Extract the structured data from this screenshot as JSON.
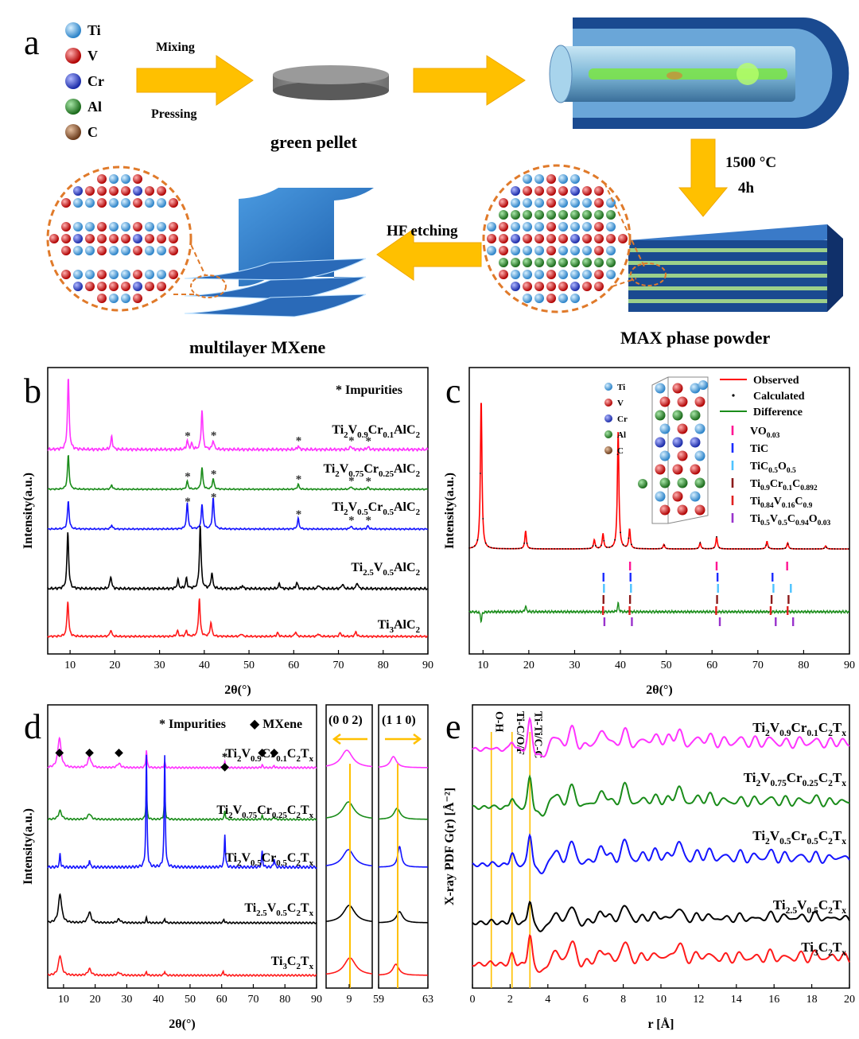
{
  "panel_labels": {
    "a": "a",
    "b": "b",
    "c": "c",
    "d": "d",
    "e": "e"
  },
  "colors": {
    "magenta": "#ff33ff",
    "green": "#1a8c1a",
    "blue": "#1414ff",
    "black": "#000000",
    "red": "#ff1a1a",
    "arrow": "#ffc000",
    "ti": "#5aa9e6",
    "v": "#d81b1b",
    "cr": "#2a3fd6",
    "al": "#2e8b2e",
    "c": "#8b5a3c"
  },
  "schematic": {
    "elements": [
      {
        "symbol": "Ti",
        "color_key": "ti",
        "icon": "ti-sphere-icon"
      },
      {
        "symbol": "V",
        "color_key": "v",
        "icon": "v-sphere-icon"
      },
      {
        "symbol": "Cr",
        "color_key": "cr",
        "icon": "cr-sphere-icon"
      },
      {
        "symbol": "Al",
        "color_key": "al",
        "icon": "al-sphere-icon"
      },
      {
        "symbol": "C",
        "color_key": "c",
        "icon": "c-sphere-icon"
      }
    ],
    "mixing": "Mixing",
    "pressing": "Pressing",
    "green_pellet": "green pellet",
    "temperature": "1500 °C",
    "duration": "4h",
    "hf_etching": "HF etching",
    "max_powder": "MAX phase powder",
    "mxene": "multilayer MXene"
  },
  "chart_data": [
    {
      "panel": "b",
      "type": "line",
      "xlabel": "2θ(°)",
      "ylabel": "Intensity(a.u.)",
      "xlim": [
        5,
        90
      ],
      "xticks": [
        10,
        20,
        30,
        40,
        50,
        60,
        70,
        80,
        90
      ],
      "annotation": "* Impurities",
      "series": [
        {
          "name": "Ti2V0.9Cr0.1AlC2",
          "color": "#ff33ff",
          "peaks": [
            [
              9.6,
              100
            ],
            [
              19.3,
              18
            ],
            [
              36.2,
              12
            ],
            [
              37.2,
              8
            ],
            [
              39.5,
              55
            ],
            [
              42.0,
              13
            ],
            [
              61.0,
              5
            ],
            [
              72.8,
              5
            ],
            [
              76.6,
              4
            ]
          ],
          "impurity_marks": [
            36.3,
            42.1,
            61.1,
            72.9,
            76.7
          ]
        },
        {
          "name": "Ti2V0.75Cr0.25AlC2",
          "color": "#1a8c1a",
          "peaks": [
            [
              9.6,
              95
            ],
            [
              19.3,
              12
            ],
            [
              36.2,
              22
            ],
            [
              39.5,
              60
            ],
            [
              42.0,
              30
            ],
            [
              61.0,
              14
            ],
            [
              72.8,
              8
            ],
            [
              76.6,
              6
            ]
          ],
          "impurity_marks": [
            36.3,
            42.1,
            61.1,
            72.9,
            76.7
          ]
        },
        {
          "name": "Ti2V0.5Cr0.5AlC2",
          "color": "#1414ff",
          "peaks": [
            [
              9.6,
              70
            ],
            [
              19.3,
              10
            ],
            [
              36.2,
              65
            ],
            [
              39.5,
              60
            ],
            [
              42.0,
              78
            ],
            [
              61.0,
              26
            ],
            [
              72.8,
              8
            ],
            [
              76.6,
              8
            ]
          ],
          "impurity_marks": [
            36.3,
            42.1,
            61.1,
            72.9,
            76.7
          ]
        },
        {
          "name": "Ti2.5V0.5AlC2",
          "color": "#000000",
          "peaks": [
            [
              9.5,
              90
            ],
            [
              19.1,
              20
            ],
            [
              34.1,
              14
            ],
            [
              36.0,
              16
            ],
            [
              39.1,
              100
            ],
            [
              41.7,
              25
            ],
            [
              48.5,
              5
            ],
            [
              56.8,
              8
            ],
            [
              60.7,
              10
            ],
            [
              65.6,
              6
            ],
            [
              70.9,
              8
            ],
            [
              74.2,
              10
            ]
          ],
          "impurity_marks": []
        },
        {
          "name": "Ti3AlC2",
          "color": "#ff1a1a",
          "peaks": [
            [
              9.5,
              75
            ],
            [
              19.1,
              14
            ],
            [
              34.0,
              12
            ],
            [
              36.0,
              12
            ],
            [
              38.9,
              80
            ],
            [
              41.5,
              30
            ],
            [
              48.3,
              6
            ],
            [
              56.4,
              8
            ],
            [
              60.4,
              10
            ],
            [
              65.5,
              6
            ],
            [
              70.4,
              8
            ],
            [
              73.9,
              10
            ]
          ],
          "impurity_marks": []
        }
      ]
    },
    {
      "panel": "c",
      "type": "line",
      "xlabel": "2θ(°)",
      "ylabel": "Intensity(a.u.)",
      "xlim": [
        7,
        90
      ],
      "xticks": [
        10,
        20,
        30,
        40,
        50,
        60,
        70,
        80,
        90
      ],
      "legend": [
        "Observed",
        "Calculated",
        "Difference"
      ],
      "legend_colors": [
        "#ff0000",
        "#000000",
        "#1a8c1a"
      ],
      "observed_peaks": [
        [
          9.6,
          100
        ],
        [
          19.3,
          12
        ],
        [
          34.3,
          6
        ],
        [
          36.2,
          10
        ],
        [
          39.5,
          78
        ],
        [
          42.0,
          13
        ],
        [
          49.5,
          3
        ],
        [
          57.4,
          4
        ],
        [
          61.0,
          8
        ],
        [
          72.0,
          5
        ],
        [
          76.5,
          4
        ],
        [
          84.8,
          2
        ]
      ],
      "phases": [
        {
          "name": "VO0.03",
          "color": "#ff1493",
          "ticks": [
            42.1,
            61.0,
            76.4
          ]
        },
        {
          "name": "TiC",
          "color": "#1a2bff",
          "ticks": [
            36.3,
            42.2,
            61.2,
            73.2
          ]
        },
        {
          "name": "TiC0.5O0.5",
          "color": "#4dc3ff",
          "ticks": [
            36.4,
            42.3,
            61.3,
            73.4,
            77.2
          ]
        },
        {
          "name": "Ti0.9Cr0.1C0.892",
          "color": "#8b1a1a",
          "ticks": [
            36.3,
            42.1,
            61.1,
            73.0,
            76.7
          ]
        },
        {
          "name": "Ti0.84V0.16C0.9",
          "color": "#e02020",
          "ticks": [
            36.2,
            42.0,
            60.9,
            72.8,
            76.5
          ]
        },
        {
          "name": "Ti0.5V0.5C0.94O0.03",
          "color": "#9932cc",
          "ticks": [
            36.5,
            42.5,
            61.7,
            73.9,
            77.7
          ]
        }
      ],
      "difference_spikes": [
        [
          9.6,
          -8
        ],
        [
          19.3,
          5
        ],
        [
          39.5,
          7
        ]
      ],
      "inset_elements": [
        "Ti",
        "V",
        "Cr",
        "Al",
        "C"
      ]
    },
    {
      "panel": "d",
      "type": "line",
      "xlabel": "2θ(°)",
      "ylabel": "Intensity(a.u.)",
      "xlim": [
        5,
        90
      ],
      "xticks": [
        10,
        20,
        30,
        40,
        50,
        60,
        70,
        80,
        90
      ],
      "annotation_impurities": "* Impurities",
      "annotation_mxene": "◆ MXene",
      "zoom_002": {
        "label": "(0 0 2)",
        "xlim": [
          7.5,
          10.5
        ],
        "xticks": [
          9
        ]
      },
      "zoom_110": {
        "label": "(1 1 0)",
        "xlim": [
          59,
          63
        ],
        "xticks": [
          59,
          63
        ]
      },
      "series": [
        {
          "name": "Ti2V0.9Cr0.1C2Tx",
          "color": "#ff33ff",
          "peaks": [
            [
              8.7,
              42
            ],
            [
              18.2,
              15
            ],
            [
              27.5,
              6
            ],
            [
              36.2,
              25
            ],
            [
              42.0,
              8
            ],
            [
              61.0,
              8
            ],
            [
              72.8,
              4
            ],
            [
              76.6,
              3
            ]
          ],
          "peak_002": 8.85,
          "peak_110": 60.2
        },
        {
          "name": "Ti2V0.75Cr0.25C2Tx",
          "color": "#1a8c1a",
          "peaks": [
            [
              8.9,
              12
            ],
            [
              18.2,
              8
            ],
            [
              36.2,
              40
            ],
            [
              42.0,
              38
            ],
            [
              61.0,
              12
            ],
            [
              72.8,
              5
            ],
            [
              76.6,
              4
            ]
          ],
          "peak_002": 8.95,
          "peak_110": 60.5
        },
        {
          "name": "Ti2V0.5Cr0.5C2Tx",
          "color": "#1414ff",
          "peaks": [
            [
              8.9,
              12
            ],
            [
              18.2,
              7
            ],
            [
              36.2,
              100
            ],
            [
              42.0,
              100
            ],
            [
              61.0,
              30
            ],
            [
              72.8,
              14
            ],
            [
              76.6,
              8
            ]
          ],
          "peak_002": 8.95,
          "peak_110": 60.7
        },
        {
          "name": "Ti2.5V0.5C2Tx",
          "color": "#000000",
          "peaks": [
            [
              8.9,
              40
            ],
            [
              18.2,
              15
            ],
            [
              27.5,
              5
            ],
            [
              36.2,
              7
            ],
            [
              42.0,
              6
            ],
            [
              60.7,
              5
            ]
          ],
          "peak_002": 9.0,
          "peak_110": 60.7
        },
        {
          "name": "Ti3C2Tx",
          "color": "#ff1a1a",
          "peaks": [
            [
              8.9,
              28
            ],
            [
              18.2,
              9
            ],
            [
              27.5,
              4
            ],
            [
              36.2,
              5
            ],
            [
              42.0,
              6
            ],
            [
              60.5,
              6
            ]
          ],
          "peak_002": 9.05,
          "peak_110": 60.4
        }
      ]
    },
    {
      "panel": "e",
      "type": "line",
      "xlabel": "r [Å]",
      "ylabel": "X-ray PDF G(r) [Å⁻²]",
      "xlim": [
        0,
        20
      ],
      "xticks": [
        0,
        2,
        4,
        6,
        8,
        10,
        12,
        14,
        16,
        18,
        20
      ],
      "reference_lines": [
        {
          "label": "O-H",
          "r": 1.0
        },
        {
          "label": "Ti-C/O/F",
          "r": 2.1
        },
        {
          "label": "Ti-Ti/C-C",
          "r": 3.05
        }
      ],
      "peak_positions": [
        1.0,
        2.1,
        3.05,
        4.2,
        4.5,
        5.3,
        6.0,
        6.8,
        7.3,
        8.1,
        9.0,
        9.7,
        10.4,
        11.0,
        11.9,
        12.6,
        13.4,
        14.2,
        15.0,
        15.8,
        16.6,
        17.4,
        18.2,
        19.0,
        19.7
      ],
      "series": [
        {
          "name": "Ti2V0.9Cr0.1C2Tx",
          "color": "#ff33ff",
          "amplitudes": [
            0.06,
            0.25,
            0.9,
            0.25,
            0.3,
            0.7,
            0.35,
            0.55,
            0.3,
            0.6,
            0.35,
            0.45,
            0.4,
            0.55,
            0.4,
            0.45,
            0.35,
            0.4,
            0.35,
            0.4,
            0.3,
            0.35,
            0.35,
            0.3,
            0.3
          ]
        },
        {
          "name": "Ti2V0.75Cr0.25C2Tx",
          "color": "#1a8c1a",
          "amplitudes": [
            0.05,
            0.3,
            0.95,
            0.25,
            0.3,
            0.7,
            0.3,
            0.45,
            0.25,
            0.7,
            0.3,
            0.35,
            0.3,
            0.6,
            0.35,
            0.4,
            0.3,
            0.3,
            0.3,
            0.35,
            0.3,
            0.3,
            0.35,
            0.25,
            0.25
          ]
        },
        {
          "name": "Ti2V0.5Cr0.5C2Tx",
          "color": "#1414ff",
          "amplitudes": [
            0.05,
            0.35,
            0.95,
            0.25,
            0.3,
            0.75,
            0.3,
            0.5,
            0.3,
            0.75,
            0.35,
            0.45,
            0.35,
            0.7,
            0.4,
            0.45,
            0.35,
            0.4,
            0.35,
            0.45,
            0.35,
            0.35,
            0.35,
            0.3,
            0.3
          ]
        },
        {
          "name": "Ti2.5V0.5C2Tx",
          "color": "#000000",
          "amplitudes": [
            0.05,
            0.25,
            0.7,
            0.15,
            0.2,
            0.55,
            0.2,
            0.3,
            0.2,
            0.55,
            0.2,
            0.3,
            0.2,
            0.45,
            0.25,
            0.25,
            0.2,
            0.25,
            0.2,
            0.3,
            0.25,
            0.25,
            0.3,
            0.2,
            0.2
          ]
        },
        {
          "name": "Ti3C2Tx",
          "color": "#ff1a1a",
          "amplitudes": [
            0.05,
            0.3,
            0.9,
            0.2,
            0.3,
            0.75,
            0.25,
            0.4,
            0.25,
            0.7,
            0.3,
            0.35,
            0.3,
            0.65,
            0.35,
            0.35,
            0.3,
            0.35,
            0.3,
            0.4,
            0.3,
            0.35,
            0.4,
            0.3,
            0.3
          ]
        }
      ]
    }
  ]
}
